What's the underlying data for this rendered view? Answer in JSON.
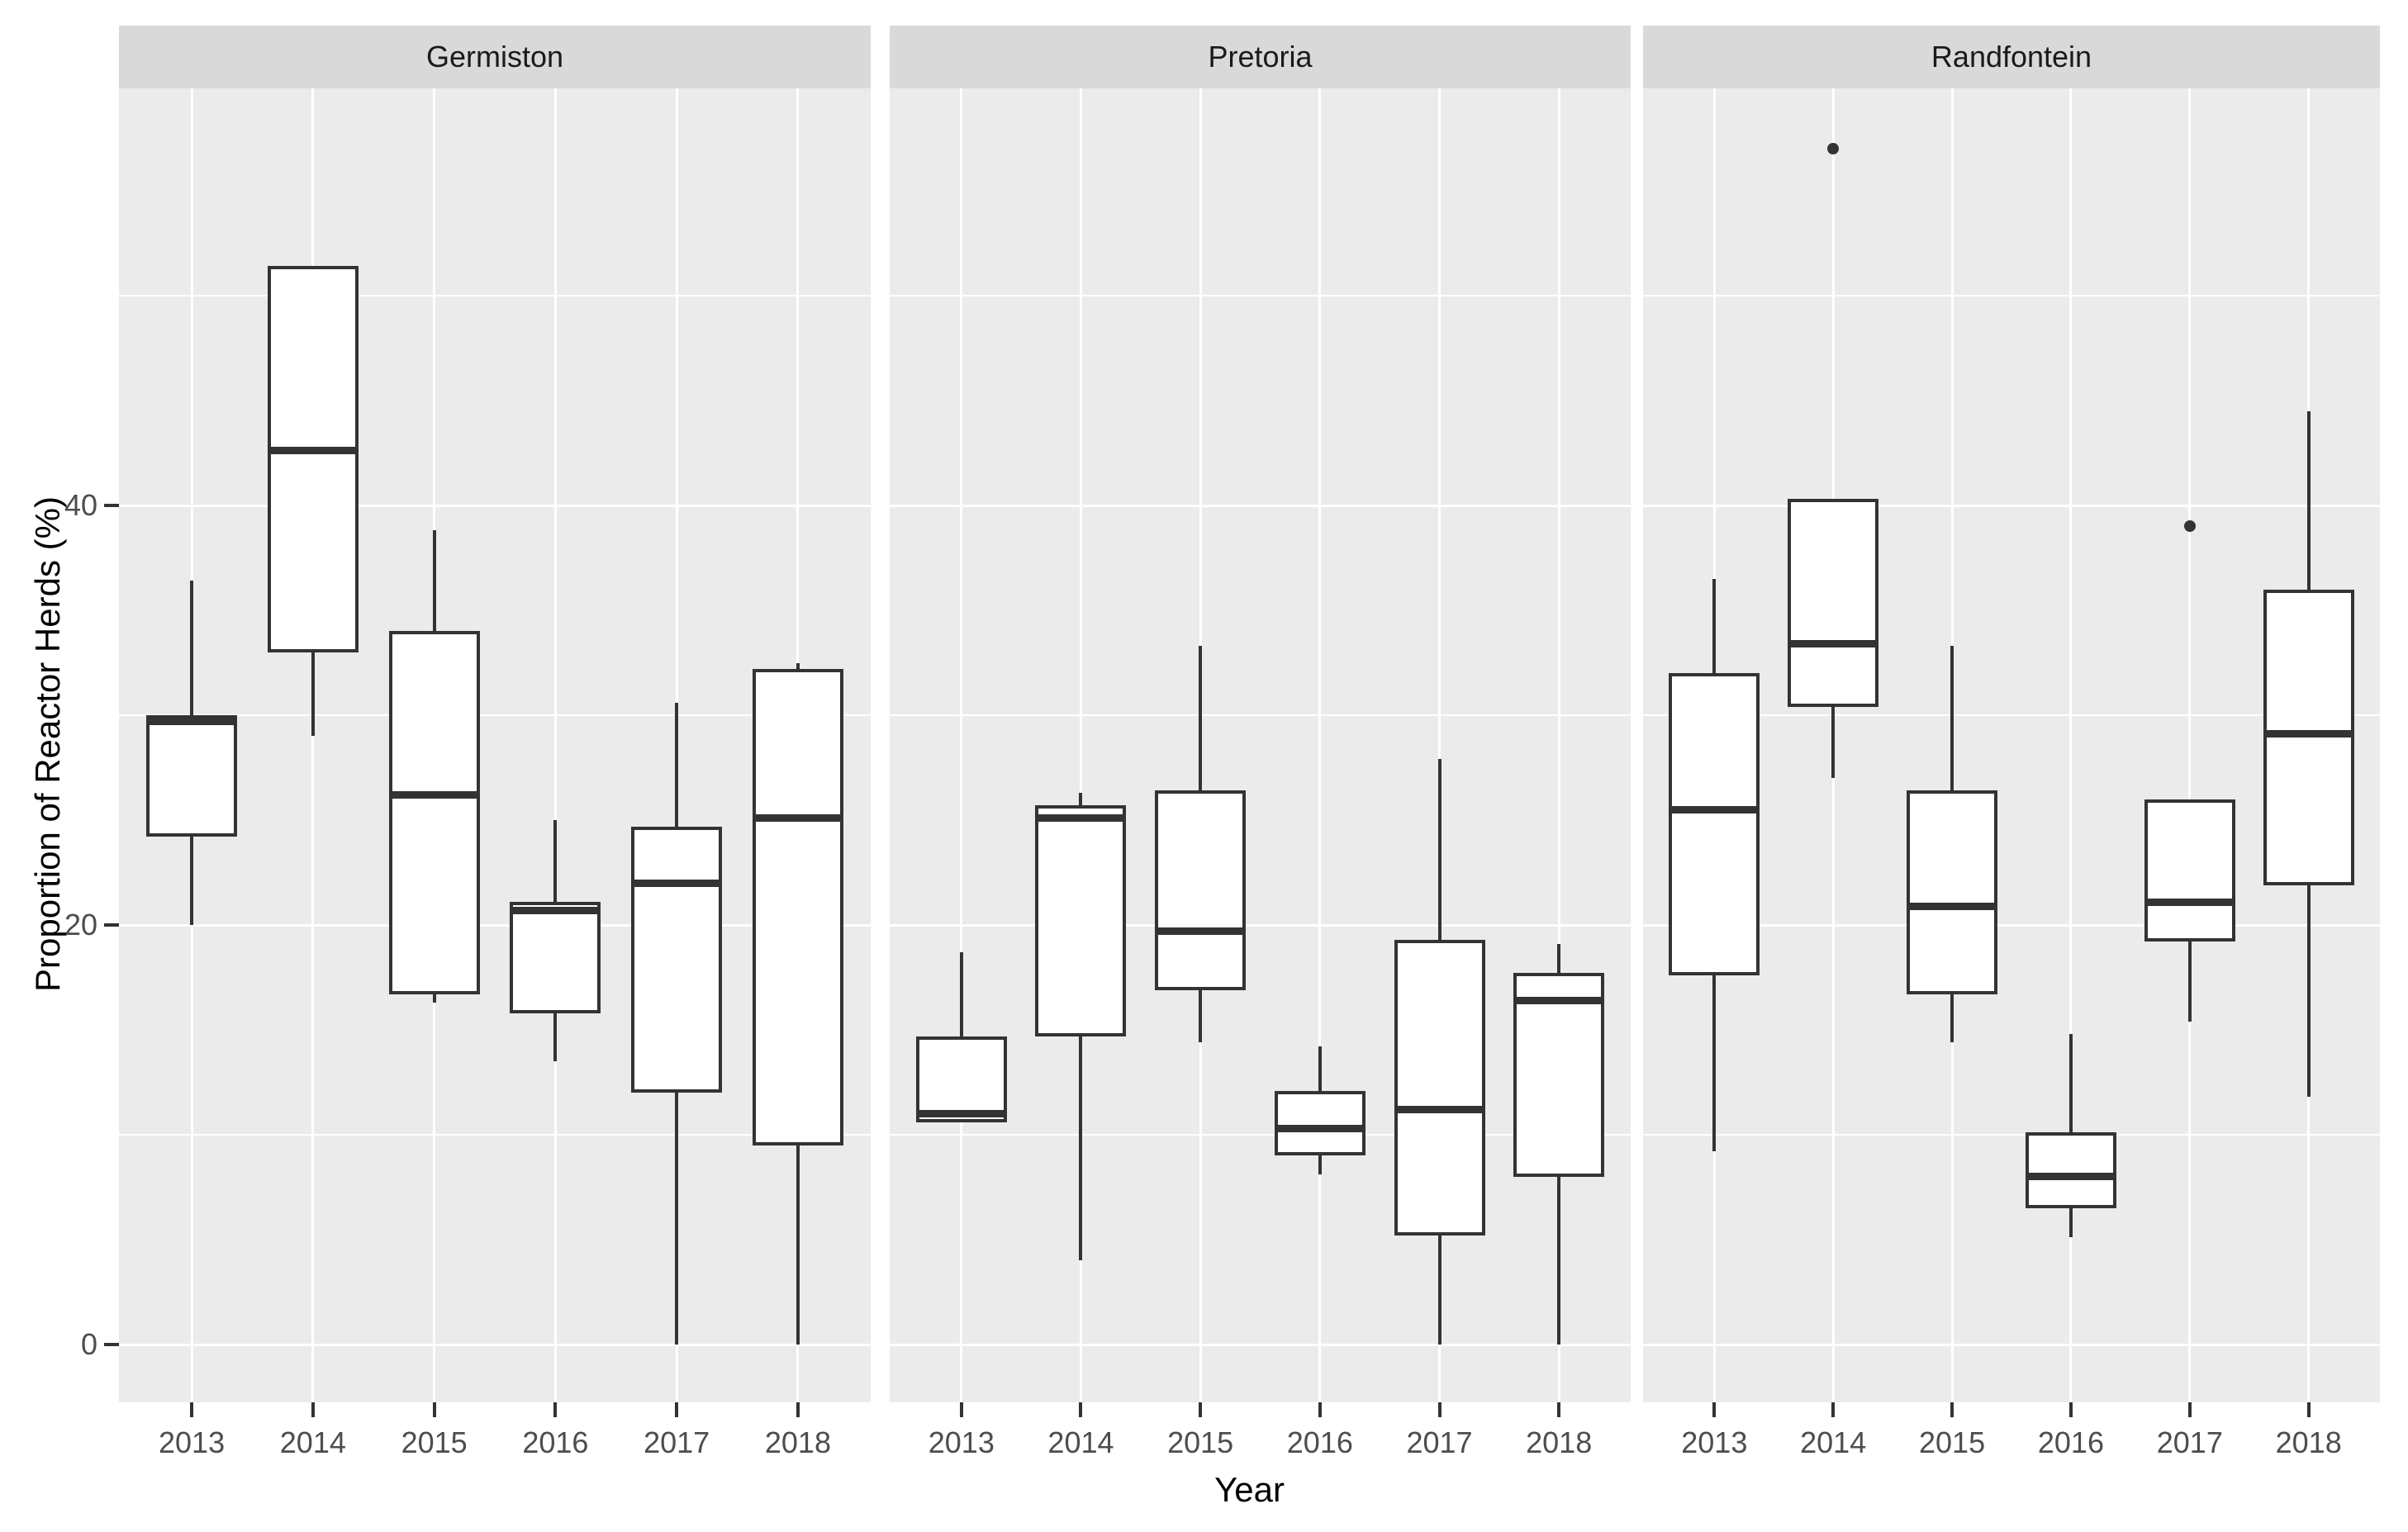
{
  "figure": {
    "x_axis_title": "Year",
    "y_axis_title": "Proportion of Reactor Herds (%)"
  },
  "colors": {
    "panel_background": "#ebebeb",
    "strip_background": "#d9d9d9",
    "gridline": "#ffffff",
    "box_stroke": "#333333",
    "axis_text": "#4d4d4d",
    "title_text": "#000000"
  },
  "chart_data": {
    "type": "boxplot",
    "title": "",
    "xlabel": "Year",
    "ylabel": "Proportion of Reactor Herds (%)",
    "categories": [
      "2013",
      "2014",
      "2015",
      "2016",
      "2017",
      "2018"
    ],
    "ylim": [
      -2.5,
      59.5
    ],
    "y_major_ticks": [
      0,
      20,
      40
    ],
    "y_minor_gridlines": [
      10,
      30,
      50
    ],
    "grid": "on",
    "legend": "none",
    "facets": [
      {
        "label": "Germiston",
        "boxes": [
          {
            "year": "2013",
            "min": 20,
            "q1": 24.2,
            "median": 29.7,
            "q3": 30,
            "max": 36.4,
            "outliers": []
          },
          {
            "year": "2014",
            "min": 29,
            "q1": 33,
            "median": 42.6,
            "q3": 51.4,
            "max": 51.4,
            "outliers": []
          },
          {
            "year": "2015",
            "min": 16.3,
            "q1": 16.7,
            "median": 26.2,
            "q3": 34,
            "max": 38.8,
            "outliers": []
          },
          {
            "year": "2016",
            "min": 13.5,
            "q1": 15.8,
            "median": 20.7,
            "q3": 21.1,
            "max": 25,
            "outliers": []
          },
          {
            "year": "2017",
            "min": 0,
            "q1": 12,
            "median": 22,
            "q3": 24.7,
            "max": 30.6,
            "outliers": []
          },
          {
            "year": "2018",
            "min": 0,
            "q1": 9.5,
            "median": 25.1,
            "q3": 32.2,
            "max": 32.5,
            "outliers": []
          }
        ]
      },
      {
        "label": "Pretoria",
        "boxes": [
          {
            "year": "2013",
            "min": 10.6,
            "q1": 10.6,
            "median": 11,
            "q3": 14.7,
            "max": 18.7,
            "outliers": []
          },
          {
            "year": "2014",
            "min": 4,
            "q1": 14.7,
            "median": 25.1,
            "q3": 25.7,
            "max": 26.3,
            "outliers": []
          },
          {
            "year": "2015",
            "min": 14.4,
            "q1": 16.9,
            "median": 19.7,
            "q3": 26.4,
            "max": 33.3,
            "outliers": []
          },
          {
            "year": "2016",
            "min": 8.1,
            "q1": 9,
            "median": 10.3,
            "q3": 12.1,
            "max": 14.2,
            "outliers": []
          },
          {
            "year": "2017",
            "min": 0,
            "q1": 5.2,
            "median": 11.2,
            "q3": 19.3,
            "max": 27.9,
            "outliers": []
          },
          {
            "year": "2018",
            "min": 0,
            "q1": 8,
            "median": 16.4,
            "q3": 17.7,
            "max": 19.1,
            "outliers": []
          }
        ]
      },
      {
        "label": "Randfontein",
        "boxes": [
          {
            "year": "2013",
            "min": 9.2,
            "q1": 17.6,
            "median": 25.5,
            "q3": 32,
            "max": 36.5,
            "outliers": []
          },
          {
            "year": "2014",
            "min": 27,
            "q1": 30.4,
            "median": 33.4,
            "q3": 40.3,
            "max": 40.3,
            "outliers": [
              57
            ]
          },
          {
            "year": "2015",
            "min": 14.4,
            "q1": 16.7,
            "median": 20.9,
            "q3": 26.4,
            "max": 33.3,
            "outliers": []
          },
          {
            "year": "2016",
            "min": 5.1,
            "q1": 6.5,
            "median": 8,
            "q3": 10.1,
            "max": 14.8,
            "outliers": []
          },
          {
            "year": "2017",
            "min": 15.4,
            "q1": 19.2,
            "median": 21.1,
            "q3": 26,
            "max": 26,
            "outliers": [
              39
            ]
          },
          {
            "year": "2018",
            "min": 11.8,
            "q1": 21.9,
            "median": 29.1,
            "q3": 36,
            "max": 44.5,
            "outliers": []
          }
        ]
      }
    ]
  }
}
